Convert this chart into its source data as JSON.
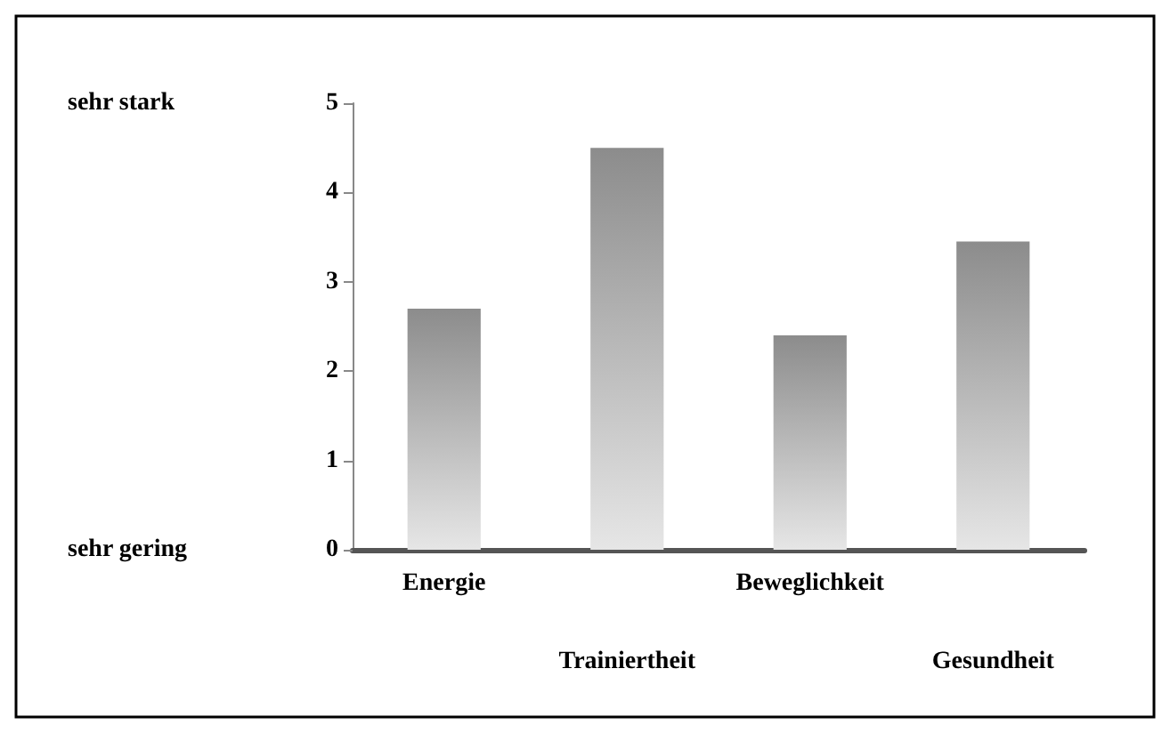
{
  "chart_data": {
    "type": "bar",
    "categories": [
      "Energie",
      "Trainiertheit",
      "Beweglichkeit",
      "Gesundheit"
    ],
    "values": [
      2.7,
      4.5,
      2.4,
      3.45
    ],
    "color": "#8c8c8c",
    "ylim": [
      0,
      5
    ],
    "yticks": [
      0,
      1,
      2,
      3,
      4,
      5
    ],
    "grid": false,
    "annotations": [
      "sehr stark",
      "sehr gering"
    ]
  }
}
